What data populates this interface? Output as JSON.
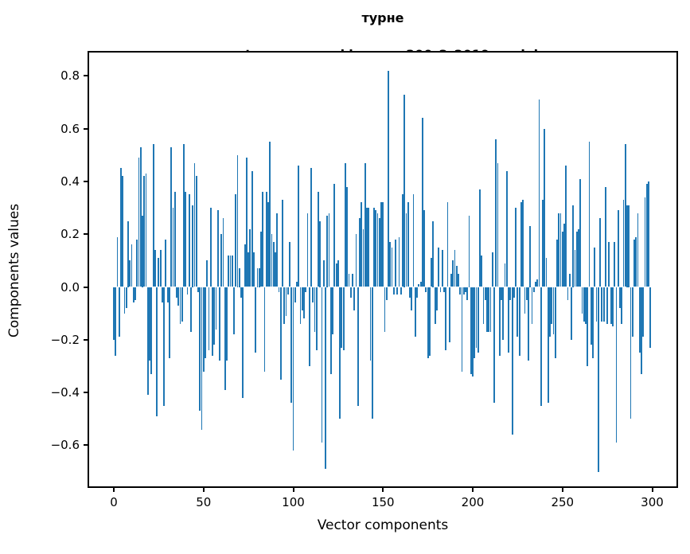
{
  "chart_data": {
    "type": "bar",
    "title": "турне",
    "subtitle": "tayga_upos_skipgram_300_2_2019 model",
    "xlabel": "Vector components",
    "ylabel": "Components values",
    "bar_color": "#1f77b4",
    "axis_color": "#000000",
    "grid": false,
    "legend_position": "none",
    "x_ticks": [
      0,
      50,
      100,
      150,
      200,
      250,
      300
    ],
    "y_ticks": [
      0.8,
      0.6,
      0.4,
      0.2,
      0.0,
      -0.2,
      -0.4,
      -0.6
    ],
    "xlim": [
      -14.6,
      314.6
    ],
    "ylim": [
      -0.762,
      0.894
    ],
    "values": [
      -0.2,
      -0.26,
      0.19,
      -0.19,
      0.45,
      0.42,
      -0.1,
      -0.08,
      0.25,
      0.1,
      0.16,
      -0.06,
      -0.05,
      0.18,
      0.49,
      0.53,
      0.27,
      0.42,
      0.43,
      -0.41,
      -0.28,
      -0.33,
      0.54,
      0.14,
      -0.49,
      0.11,
      0.14,
      -0.06,
      -0.45,
      0.18,
      -0.06,
      -0.27,
      0.53,
      0.3,
      0.36,
      -0.04,
      -0.07,
      -0.14,
      -0.13,
      0.54,
      0.36,
      -0.03,
      0.35,
      -0.17,
      0.31,
      0.47,
      0.42,
      -0.02,
      -0.47,
      -0.54,
      -0.32,
      -0.27,
      0.1,
      -0.24,
      0.3,
      -0.26,
      -0.22,
      -0.16,
      0.29,
      -0.28,
      0.2,
      0.26,
      -0.39,
      -0.28,
      0.12,
      0.12,
      0.12,
      -0.18,
      0.35,
      0.5,
      0.07,
      -0.04,
      -0.42,
      0.16,
      0.49,
      0.13,
      0.22,
      0.44,
      0.13,
      -0.25,
      0.07,
      0.07,
      0.21,
      0.36,
      -0.32,
      0.36,
      0.32,
      0.55,
      0.2,
      0.17,
      0.13,
      0.28,
      -0.02,
      -0.35,
      0.33,
      -0.14,
      -0.11,
      -0.03,
      0.17,
      -0.44,
      -0.62,
      -0.06,
      0.02,
      0.46,
      -0.14,
      -0.09,
      -0.12,
      -0.02,
      0.28,
      -0.3,
      0.45,
      -0.06,
      -0.17,
      -0.24,
      0.36,
      0.25,
      -0.59,
      0.1,
      -0.69,
      0.27,
      0.28,
      -0.33,
      -0.18,
      0.39,
      0.09,
      0.1,
      -0.5,
      -0.23,
      -0.24,
      0.47,
      0.38,
      0.05,
      -0.04,
      0.05,
      -0.09,
      0.2,
      -0.45,
      0.26,
      0.32,
      0.22,
      0.47,
      0.3,
      0.3,
      -0.28,
      -0.5,
      0.3,
      0.29,
      0.28,
      0.26,
      0.32,
      0.32,
      -0.17,
      -0.05,
      0.82,
      0.17,
      0.15,
      -0.03,
      0.18,
      -0.03,
      0.19,
      -0.03,
      0.35,
      0.73,
      0.28,
      0.32,
      -0.04,
      -0.09,
      0.35,
      -0.19,
      -0.04,
      0.01,
      0.02,
      0.64,
      0.29,
      -0.02,
      -0.27,
      -0.26,
      0.11,
      0.25,
      -0.14,
      -0.09,
      0.15,
      -0.02,
      0.14,
      -0.02,
      -0.24,
      0.32,
      -0.21,
      0.05,
      0.1,
      0.14,
      0.08,
      0.05,
      -0.03,
      -0.32,
      -0.03,
      -0.02,
      -0.05,
      0.27,
      -0.33,
      -0.34,
      -0.27,
      -0.23,
      -0.25,
      0.37,
      0.12,
      -0.14,
      -0.05,
      -0.17,
      -0.17,
      -0.17,
      0.13,
      -0.44,
      0.56,
      0.47,
      -0.26,
      -0.05,
      -0.2,
      0.09,
      0.44,
      -0.25,
      -0.05,
      -0.56,
      -0.04,
      0.3,
      -0.19,
      -0.26,
      0.32,
      0.33,
      -0.1,
      -0.05,
      -0.28,
      0.23,
      -0.14,
      -0.02,
      0.02,
      0.03,
      0.71,
      -0.45,
      0.33,
      0.6,
      0.11,
      -0.44,
      -0.19,
      -0.14,
      -0.18,
      -0.27,
      0.18,
      0.28,
      0.28,
      0.21,
      0.24,
      0.46,
      -0.05,
      0.05,
      -0.2,
      0.31,
      0.14,
      0.21,
      0.22,
      0.41,
      -0.1,
      -0.13,
      -0.14,
      -0.3,
      0.55,
      -0.22,
      -0.27,
      0.15,
      -0.13,
      -0.7,
      0.26,
      -0.13,
      -0.13,
      0.38,
      -0.14,
      0.17,
      -0.14,
      -0.15,
      0.17,
      -0.59,
      0.29,
      -0.08,
      -0.14,
      0.33,
      0.54,
      0.31,
      0.31,
      -0.5,
      -0.19,
      0.18,
      0.19,
      0.28,
      -0.25,
      -0.33,
      -0.19,
      0.34,
      0.39,
      0.4,
      -0.23
    ]
  }
}
